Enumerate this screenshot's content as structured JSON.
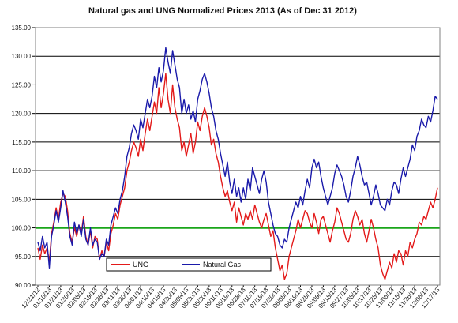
{
  "chart_data": {
    "type": "line",
    "title": "Natural gas and UNG Normalized Prices 2013 (As of Dec 31 2012)",
    "xlabel": "",
    "ylabel": "",
    "ylim": [
      90,
      135
    ],
    "yticks": [
      "90.00",
      "95.00",
      "100.00",
      "105.00",
      "110.00",
      "115.00",
      "120.00",
      "125.00",
      "130.00",
      "135.00"
    ],
    "grid": true,
    "legend_position": "bottom-left",
    "x_tick_labels": [
      "12/31/12",
      "01/10/13",
      "01/21/13",
      "01/30/13",
      "02/08/13",
      "02/19/13",
      "02/28/13",
      "03/11/13",
      "03/20/13",
      "04/01/13",
      "04/10/13",
      "04/19/13",
      "04/30/13",
      "05/09/13",
      "05/20/13",
      "05/30/13",
      "06/10/13",
      "06/19/13",
      "06/28/13",
      "07/10/13",
      "07/19/13",
      "07/30/13",
      "08/08/13",
      "08/19/13",
      "08/28/13",
      "09/09/13",
      "09/18/13",
      "09/27/13",
      "10/08/13",
      "10/17/13",
      "10/28/13",
      "11/06/13",
      "11/15/13",
      "11/26/13",
      "12/06/13",
      "12/17/13"
    ],
    "reference_line": {
      "value": 100,
      "color": "#1aa51a"
    },
    "series": [
      {
        "name": "UNG",
        "color": "#e31a1a",
        "values": [
          96.5,
          94.5,
          97.0,
          95.5,
          96.5,
          94.0,
          99.0,
          101.0,
          103.5,
          101.5,
          104.5,
          106.0,
          105.5,
          103.0,
          99.0,
          97.5,
          100.0,
          98.5,
          100.5,
          99.0,
          102.0,
          98.5,
          97.0,
          99.5,
          96.5,
          98.5,
          98.0,
          94.5,
          96.0,
          95.0,
          97.5,
          96.0,
          99.0,
          100.5,
          102.5,
          101.5,
          104.0,
          105.5,
          107.0,
          110.0,
          111.5,
          113.5,
          115.0,
          114.0,
          112.5,
          115.5,
          113.5,
          116.5,
          119.0,
          117.0,
          119.5,
          122.0,
          120.0,
          124.5,
          121.0,
          123.5,
          127.0,
          122.5,
          120.0,
          125.0,
          121.0,
          119.0,
          117.5,
          113.5,
          115.0,
          112.5,
          114.5,
          116.5,
          113.0,
          115.0,
          118.5,
          117.0,
          119.5,
          121.0,
          119.5,
          117.5,
          114.5,
          115.5,
          113.0,
          111.5,
          109.0,
          107.0,
          105.5,
          106.5,
          104.5,
          103.0,
          104.5,
          101.0,
          103.5,
          102.0,
          100.5,
          102.5,
          101.5,
          103.0,
          101.5,
          104.0,
          102.5,
          101.0,
          100.0,
          101.5,
          102.5,
          100.5,
          98.5,
          99.5,
          96.5,
          94.5,
          92.5,
          93.5,
          91.0,
          92.0,
          95.0,
          96.5,
          98.0,
          99.5,
          101.5,
          100.0,
          101.5,
          103.0,
          102.5,
          101.0,
          100.0,
          102.5,
          101.0,
          99.0,
          101.5,
          102.0,
          100.5,
          99.0,
          97.5,
          99.5,
          101.0,
          103.5,
          102.5,
          101.0,
          99.5,
          98.0,
          97.5,
          99.0,
          101.5,
          103.0,
          102.0,
          100.5,
          101.5,
          99.0,
          97.5,
          99.5,
          101.5,
          100.0,
          98.0,
          96.5,
          93.5,
          92.0,
          91.0,
          92.5,
          94.0,
          93.0,
          95.5,
          94.0,
          96.0,
          95.5,
          93.5,
          96.0,
          95.0,
          97.5,
          96.5,
          98.0,
          99.0,
          101.0,
          100.5,
          102.0,
          101.5,
          103.0,
          104.5,
          103.5,
          105.0,
          107.0
        ]
      },
      {
        "name": "Natural Gas",
        "color": "#1a1aaa",
        "values": [
          97.5,
          96.0,
          98.5,
          96.5,
          97.5,
          93.0,
          98.5,
          100.5,
          103.0,
          101.0,
          103.5,
          106.5,
          104.5,
          102.0,
          98.5,
          97.0,
          101.0,
          99.0,
          100.5,
          98.5,
          101.5,
          98.0,
          97.0,
          100.0,
          97.0,
          98.0,
          97.5,
          94.5,
          95.5,
          95.0,
          98.0,
          97.0,
          100.5,
          102.0,
          103.5,
          102.5,
          105.0,
          106.5,
          109.0,
          112.5,
          114.0,
          116.5,
          118.0,
          117.0,
          115.5,
          119.0,
          117.5,
          120.0,
          122.5,
          121.0,
          123.0,
          126.5,
          124.5,
          128.0,
          125.5,
          127.5,
          131.5,
          129.0,
          127.0,
          131.0,
          128.5,
          126.0,
          124.5,
          120.0,
          122.5,
          120.0,
          121.5,
          119.0,
          120.5,
          118.5,
          122.5,
          124.0,
          126.0,
          127.0,
          125.5,
          123.5,
          121.0,
          119.5,
          117.0,
          115.5,
          113.0,
          111.0,
          109.0,
          111.5,
          108.0,
          106.0,
          108.5,
          105.5,
          107.0,
          104.5,
          107.0,
          105.0,
          108.5,
          106.5,
          110.5,
          109.0,
          107.5,
          106.0,
          108.5,
          110.0,
          108.0,
          104.5,
          102.5,
          100.5,
          99.0,
          98.5,
          97.0,
          96.5,
          98.0,
          97.5,
          100.0,
          101.5,
          103.0,
          104.5,
          103.5,
          105.5,
          104.0,
          106.5,
          108.5,
          107.0,
          110.5,
          112.0,
          110.5,
          111.5,
          109.0,
          107.0,
          105.5,
          104.0,
          105.5,
          107.0,
          109.5,
          111.0,
          110.0,
          109.0,
          107.5,
          105.5,
          104.5,
          106.5,
          109.0,
          110.5,
          112.5,
          111.0,
          109.0,
          107.5,
          108.0,
          106.0,
          104.0,
          105.5,
          107.5,
          106.0,
          104.0,
          103.5,
          103.0,
          105.0,
          104.0,
          106.5,
          108.0,
          107.5,
          106.0,
          108.5,
          110.5,
          109.0,
          110.5,
          112.0,
          114.5,
          113.5,
          116.0,
          117.0,
          119.0,
          118.0,
          117.5,
          119.5,
          118.5,
          120.5,
          123.0,
          122.5
        ]
      }
    ]
  }
}
